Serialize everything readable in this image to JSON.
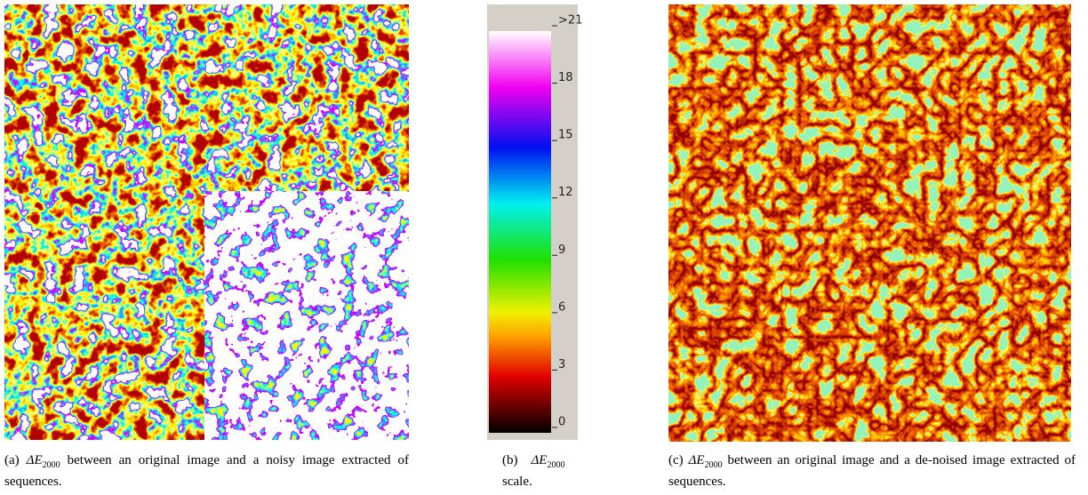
{
  "panels": [
    {
      "label": "(a)",
      "symbol": "ΔE",
      "subscript": "2000",
      "text": "between an original image and a noisy image extracted of sequences."
    },
    {
      "label": "(b)",
      "symbol": "ΔE",
      "subscript": "2000",
      "text": "scale."
    },
    {
      "label": "(c)",
      "symbol": "ΔE",
      "subscript": "2000",
      "text": "between an original image and a de-noised image extracted of sequences."
    }
  ],
  "scale": {
    "lim": [
      0,
      21
    ],
    "ticks": [
      {
        "value": 21,
        "label": ">21"
      },
      18,
      15,
      12,
      9,
      6,
      3,
      0
    ]
  }
}
